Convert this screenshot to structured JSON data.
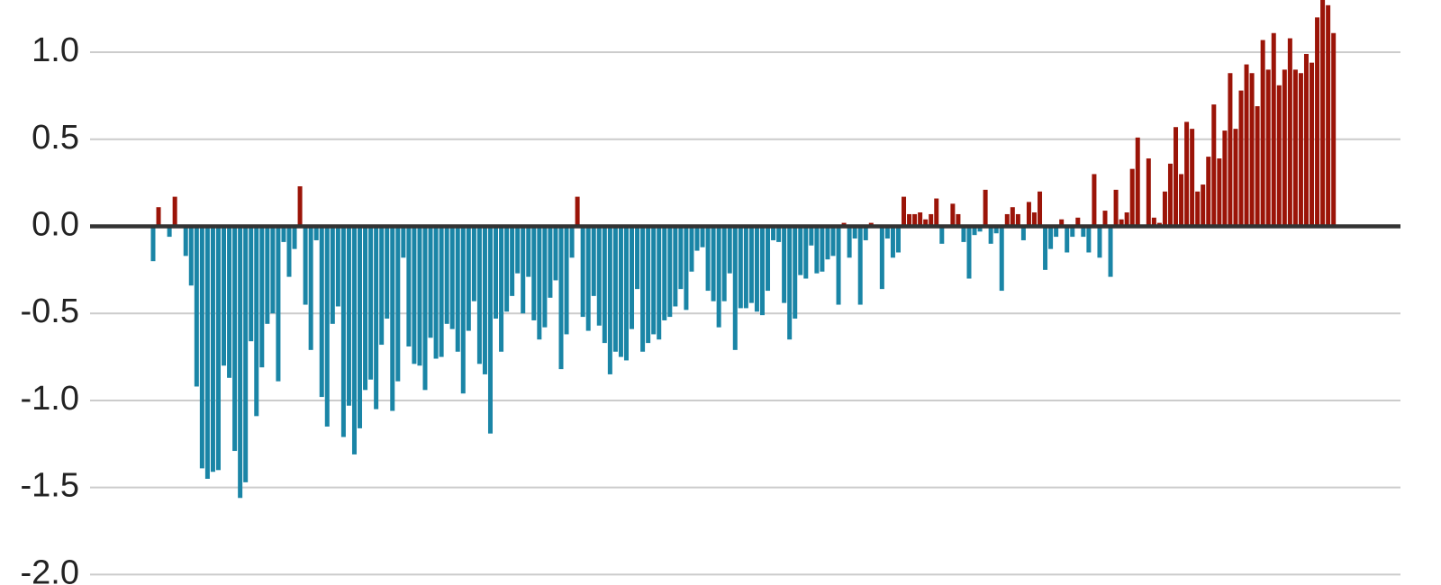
{
  "chart_data": {
    "type": "bar",
    "positive_color": "#9b1408",
    "negative_color": "#1a85a6",
    "ylim": [
      -2.06,
      1.3
    ],
    "yticks": [
      {
        "value": -2,
        "label": "-2.0"
      },
      {
        "value": -1.5,
        "label": "-1.5"
      },
      {
        "value": -1,
        "label": "-1.0"
      },
      {
        "value": -0.5,
        "label": "-0.5"
      },
      {
        "value": 0,
        "label": "0.0"
      },
      {
        "value": 0.5,
        "label": "0.5"
      },
      {
        "value": 1,
        "label": "1.0"
      }
    ],
    "grid": true,
    "zero_line": true,
    "values": [
      -0.2,
      0.11,
      0.0,
      -0.06,
      0.17,
      0.0,
      -0.17,
      -0.34,
      -0.92,
      -1.39,
      -1.45,
      -1.41,
      -1.4,
      -0.8,
      -0.87,
      -1.29,
      -1.56,
      -1.47,
      -0.66,
      -1.09,
      -0.81,
      -0.56,
      -0.5,
      -0.89,
      -0.09,
      -0.29,
      -0.13,
      0.23,
      -0.45,
      -0.71,
      -0.08,
      -0.98,
      -1.15,
      -0.56,
      -0.46,
      -1.21,
      -1.03,
      -1.31,
      -1.16,
      -0.94,
      -0.88,
      -1.05,
      -0.68,
      -0.53,
      -1.06,
      -0.89,
      -0.18,
      -0.69,
      -0.79,
      -0.8,
      -0.94,
      -0.64,
      -0.76,
      -0.75,
      -0.56,
      -0.59,
      -0.72,
      -0.96,
      -0.6,
      -0.43,
      -0.79,
      -0.85,
      -1.19,
      -0.53,
      -0.72,
      -0.49,
      -0.4,
      -0.27,
      -0.5,
      -0.29,
      -0.54,
      -0.65,
      -0.58,
      -0.41,
      -0.31,
      -0.82,
      -0.62,
      -0.18,
      0.17,
      -0.52,
      -0.6,
      -0.4,
      -0.57,
      -0.67,
      -0.85,
      -0.72,
      -0.75,
      -0.77,
      -0.59,
      -0.36,
      -0.72,
      -0.67,
      -0.62,
      -0.65,
      -0.54,
      -0.52,
      -0.46,
      -0.36,
      -0.48,
      -0.26,
      -0.14,
      -0.12,
      -0.37,
      -0.43,
      -0.58,
      -0.43,
      -0.27,
      -0.71,
      -0.47,
      -0.47,
      -0.44,
      -0.49,
      -0.51,
      -0.37,
      -0.08,
      -0.09,
      -0.44,
      -0.65,
      -0.53,
      -0.28,
      -0.3,
      -0.11,
      -0.27,
      -0.26,
      -0.19,
      -0.17,
      -0.45,
      0.02,
      -0.18,
      -0.07,
      -0.45,
      -0.08,
      0.02,
      0.0,
      -0.36,
      -0.07,
      -0.18,
      -0.15,
      0.17,
      0.07,
      0.07,
      0.08,
      0.04,
      0.07,
      0.16,
      -0.1,
      0.0,
      0.13,
      0.07,
      -0.09,
      -0.3,
      -0.05,
      -0.03,
      0.21,
      -0.1,
      -0.04,
      -0.37,
      0.07,
      0.11,
      0.07,
      -0.08,
      0.14,
      0.08,
      0.2,
      -0.25,
      -0.13,
      -0.06,
      0.04,
      -0.15,
      -0.06,
      0.05,
      -0.06,
      -0.15,
      0.3,
      -0.18,
      0.09,
      -0.29,
      0.21,
      0.04,
      0.08,
      0.33,
      0.51,
      0.0,
      0.39,
      0.05,
      0.02,
      0.2,
      0.36,
      0.57,
      0.3,
      0.6,
      0.56,
      0.2,
      0.24,
      0.4,
      0.7,
      0.39,
      0.55,
      0.88,
      0.56,
      0.78,
      0.93,
      0.88,
      0.69,
      1.07,
      0.9,
      1.11,
      0.81,
      0.9,
      1.08,
      0.9,
      0.88,
      0.99,
      0.94,
      1.2,
      1.33,
      1.27,
      1.11
    ]
  }
}
